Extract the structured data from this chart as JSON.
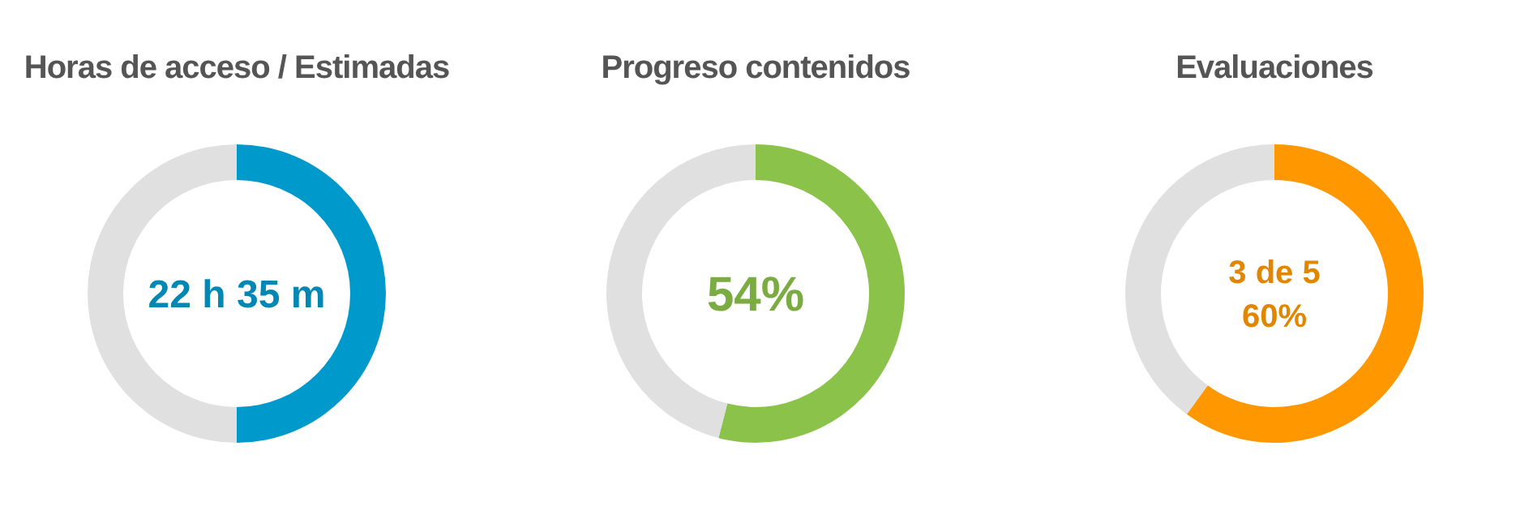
{
  "chart_data": [
    {
      "type": "donut",
      "title": "Horas de acceso / Estimadas",
      "categories": [
        null,
        null
      ],
      "values": [
        50,
        50
      ],
      "colors": [
        "#0099cc",
        "#e0e0e0"
      ],
      "annotations": [
        "22 h 35 m"
      ]
    },
    {
      "type": "donut",
      "title": "Progreso contenidos",
      "categories": [
        null,
        null
      ],
      "values": [
        54,
        46
      ],
      "colors": [
        "#8bc34a",
        "#e0e0e0"
      ],
      "annotations": [
        "54%"
      ]
    },
    {
      "type": "donut",
      "title": "Evaluaciones",
      "categories": [
        null,
        null
      ],
      "values": [
        60,
        40
      ],
      "colors": [
        "#ff9800",
        "#e0e0e0"
      ],
      "annotations": [
        "3 de 5",
        "60%"
      ]
    }
  ]
}
